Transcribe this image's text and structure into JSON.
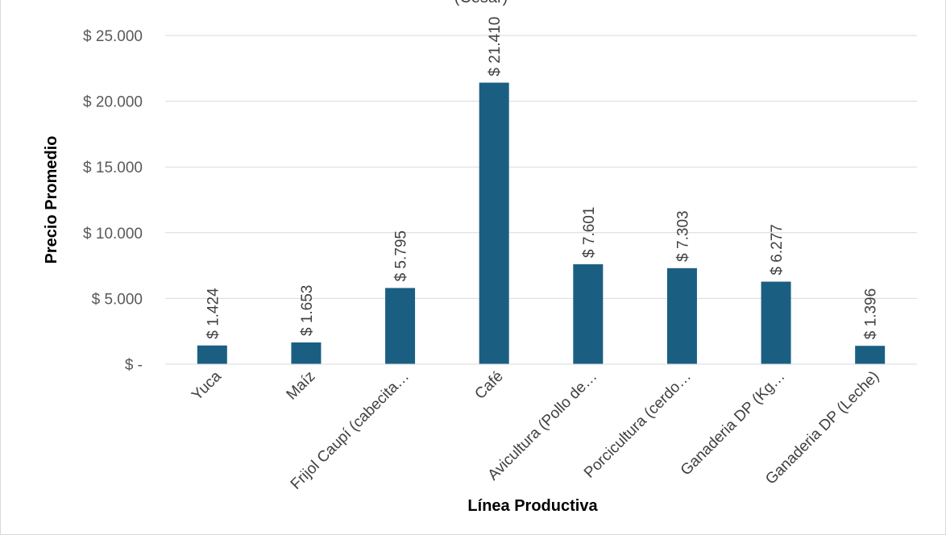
{
  "chart_data": {
    "type": "bar",
    "title": "(Cesar)",
    "xlabel": "Línea Productiva",
    "ylabel": "Precio Promedio",
    "categories": [
      "Yuca",
      "Maíz",
      "Frijol Caupí (cabecita…",
      "Café",
      "Avicultura (Pollo de…",
      "Porcicultura (cerdo…",
      "Ganaderia DP (Kg…",
      "Ganaderia DP (Leche)"
    ],
    "values": [
      1424,
      1653,
      5795,
      21410,
      7601,
      7303,
      6277,
      1396
    ],
    "value_labels": [
      "$ 1.424",
      "$ 1.653",
      "$ 5.795",
      "$ 21.410",
      "$ 7.601",
      "$ 7.303",
      "$ 6.277",
      "$ 1.396"
    ],
    "yticks": [
      0,
      5000,
      10000,
      15000,
      20000,
      25000
    ],
    "ytick_labels": [
      "$ -",
      "$ 5.000",
      "$ 10.000",
      "$ 15.000",
      "$ 20.000",
      "$ 25.000"
    ],
    "ylim": [
      0,
      25000
    ],
    "grid": true,
    "legend": "none",
    "bar_color": "#1a5f82"
  }
}
